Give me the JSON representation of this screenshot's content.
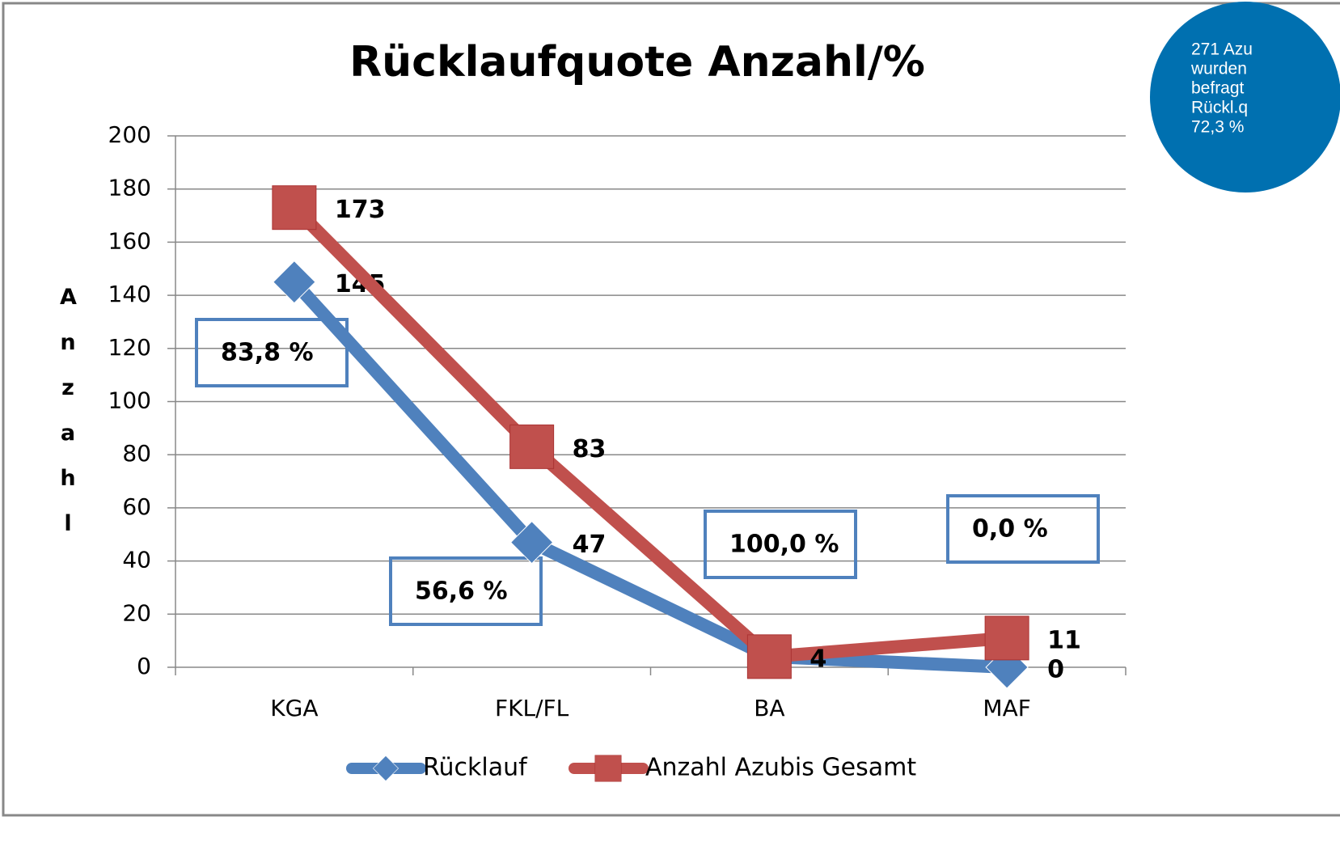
{
  "chart_data": {
    "type": "line",
    "title": "Rücklaufquote Anzahl/%",
    "y_label": "Anzahl",
    "categories": [
      "KGA",
      "FKL/FL",
      "BA",
      "MAF"
    ],
    "series": [
      {
        "name": "Rücklauf",
        "color": "#4f81bd",
        "marker": "diamond",
        "values": [
          145,
          47,
          4,
          0
        ]
      },
      {
        "name": "Anzahl Azubis Gesamt",
        "color": "#c0504d",
        "marker": "square",
        "values": [
          173,
          83,
          4,
          11
        ]
      }
    ],
    "annotations": [
      "83,8 %",
      "56,6 %",
      "100,0 %",
      "0,0 %"
    ],
    "note": [
      "271 Azu",
      "wurden",
      "befragt",
      "Rückl.q",
      "72,3 %"
    ],
    "ylim": [
      0,
      200
    ],
    "yticks": [
      0,
      20,
      40,
      60,
      80,
      100,
      120,
      140,
      160,
      180,
      200
    ],
    "grid": true,
    "legend": "bottom"
  }
}
